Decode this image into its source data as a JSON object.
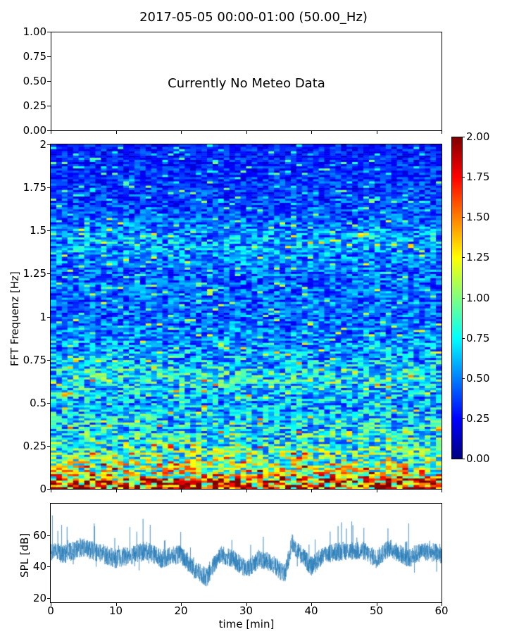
{
  "chart_data": [
    {
      "type": "text",
      "title": "2017-05-05 00:00-01:00 (50.00_Hz)",
      "annotation": "Currently No Meteo Data",
      "ylim": [
        0,
        1
      ],
      "yticks": [
        "0.00",
        "0.25",
        "0.50",
        "0.75",
        "1.00"
      ]
    },
    {
      "type": "heatmap",
      "ylabel": "FFT Frequenz [Hz]",
      "xlim": [
        0,
        60
      ],
      "ylim": [
        0,
        2
      ],
      "yticks": [
        "0",
        "0.25",
        "0.5",
        "0.75",
        "1",
        "1.25",
        "1.5",
        "1.75",
        "2"
      ],
      "colorbar": {
        "vmin": 0,
        "vmax": 2,
        "colormap": "jet",
        "ticks": [
          "0.00",
          "0.25",
          "0.50",
          "0.75",
          "1.00",
          "1.25",
          "1.50",
          "1.75",
          "2.00"
        ]
      },
      "frequency_mean_profile": [
        [
          0,
          1.7
        ],
        [
          0.1,
          1.1
        ],
        [
          0.25,
          0.8
        ],
        [
          0.5,
          0.6
        ],
        [
          0.65,
          0.75
        ],
        [
          0.75,
          0.6
        ],
        [
          1.0,
          0.45
        ],
        [
          1.25,
          0.45
        ],
        [
          1.45,
          0.6
        ],
        [
          1.6,
          0.4
        ],
        [
          2.0,
          0.3
        ]
      ]
    },
    {
      "type": "line",
      "xlabel": "time [min]",
      "ylabel": "SPL [dB]",
      "xlim": [
        0,
        60
      ],
      "ylim": [
        17.3,
        80
      ],
      "xticks": [
        "0",
        "10",
        "20",
        "30",
        "40",
        "50",
        "60"
      ],
      "yticks": [
        "20",
        "40",
        "60"
      ],
      "color": "#1f77b4",
      "mean_trend": [
        [
          0,
          50
        ],
        [
          2,
          48
        ],
        [
          5,
          52
        ],
        [
          8,
          48
        ],
        [
          10,
          45
        ],
        [
          13,
          48
        ],
        [
          15,
          50
        ],
        [
          17,
          45
        ],
        [
          20,
          48
        ],
        [
          22,
          38
        ],
        [
          24,
          33
        ],
        [
          26,
          48
        ],
        [
          28,
          45
        ],
        [
          30,
          38
        ],
        [
          32,
          45
        ],
        [
          34,
          42
        ],
        [
          36,
          35
        ],
        [
          37,
          55
        ],
        [
          39,
          45
        ],
        [
          40,
          40
        ],
        [
          42,
          48
        ],
        [
          45,
          50
        ],
        [
          48,
          50
        ],
        [
          50,
          45
        ],
        [
          52,
          52
        ],
        [
          55,
          45
        ],
        [
          57,
          50
        ],
        [
          60,
          48
        ]
      ]
    }
  ]
}
